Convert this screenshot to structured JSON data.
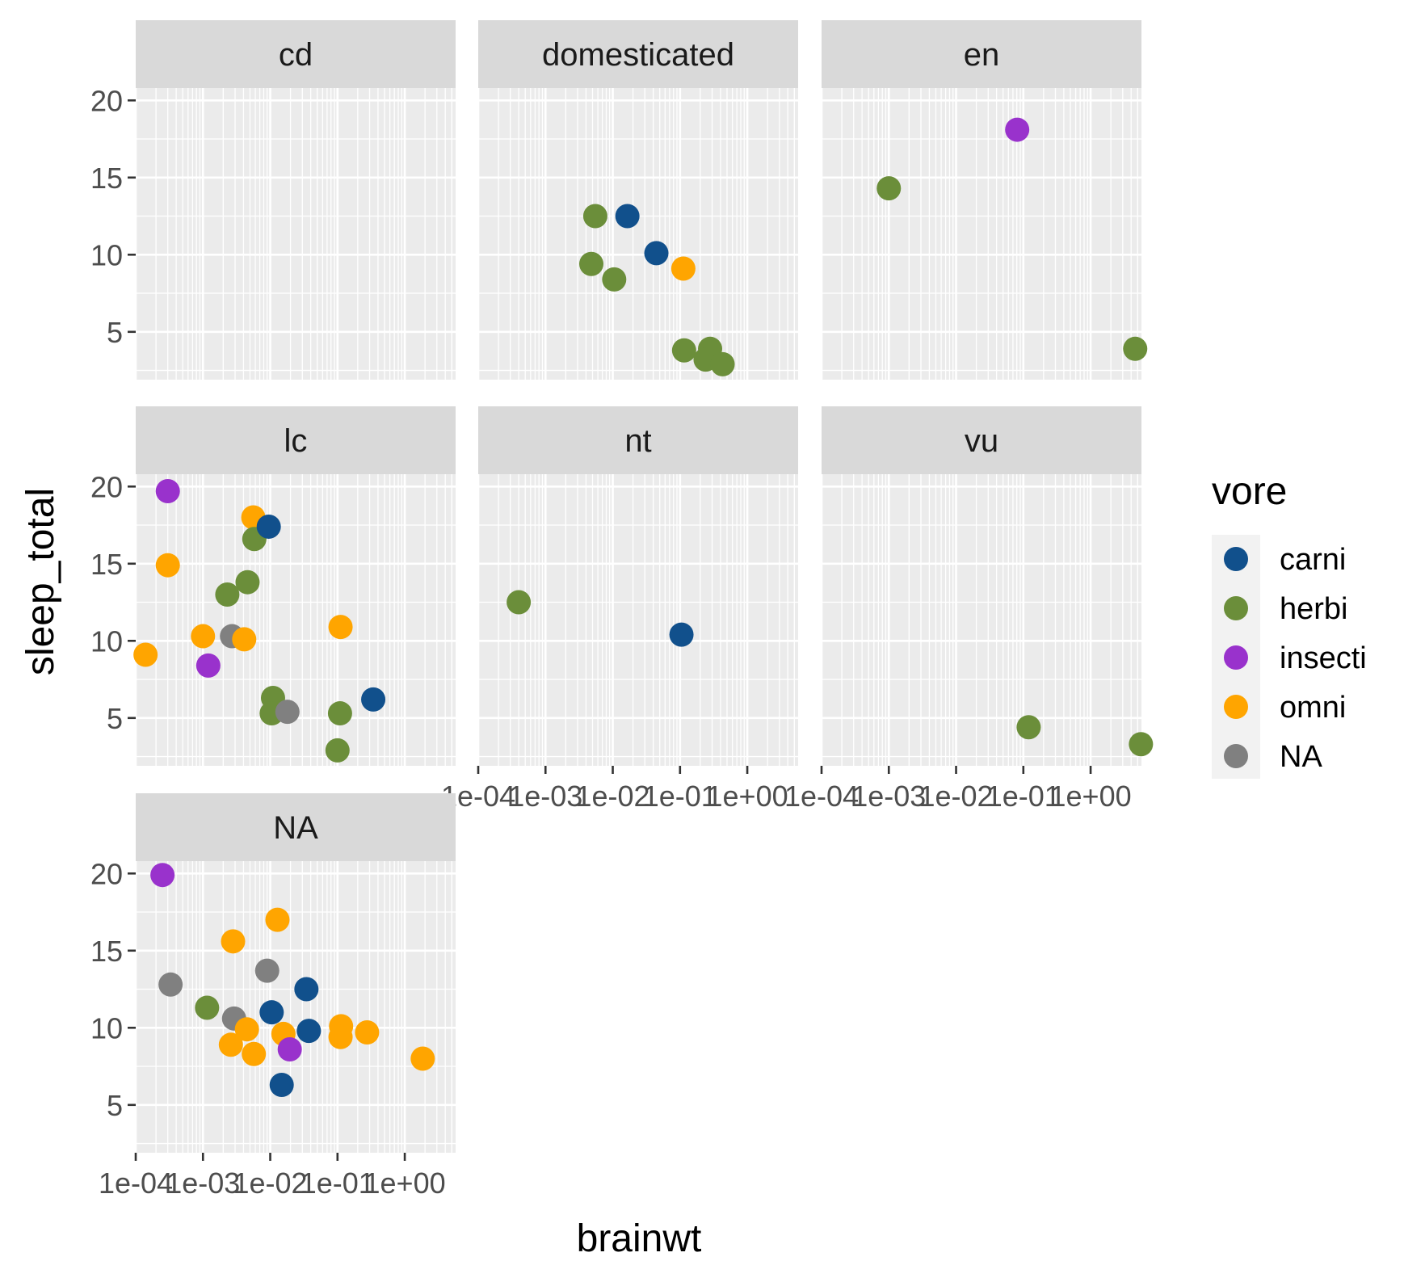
{
  "chart_data": {
    "type": "scatter",
    "title": "",
    "xlabel": "brainwt",
    "ylabel": "sleep_total",
    "x_scale": "log10",
    "xlim": [
      0.0001,
      5.7
    ],
    "ylim": [
      1.9,
      20.8
    ],
    "x_ticks": [
      0.0001,
      0.001,
      0.01,
      0.1,
      1
    ],
    "x_tick_labels": [
      "1e-04",
      "1e-03",
      "1e-02",
      "1e-01",
      "1e+00"
    ],
    "y_ticks": [
      5,
      10,
      15,
      20
    ],
    "y_tick_labels": [
      "5",
      "10",
      "15",
      "20"
    ],
    "grid": true,
    "facet_by": "conservation",
    "legend": {
      "title": "vore",
      "position": "right",
      "entries": [
        {
          "label": "carni",
          "color": "#11508c"
        },
        {
          "label": "herbi",
          "color": "#6b8e3a"
        },
        {
          "label": "insecti",
          "color": "#9932cc"
        },
        {
          "label": "omni",
          "color": "#ffa500"
        },
        {
          "label": "NA",
          "color": "#808080"
        }
      ]
    },
    "facets": [
      {
        "label": "cd",
        "points": []
      },
      {
        "label": "domesticated",
        "points": [
          {
            "x": 0.0055,
            "y": 12.5,
            "vore": "herbi"
          },
          {
            "x": 0.0048,
            "y": 9.4,
            "vore": "herbi"
          },
          {
            "x": 0.0105,
            "y": 8.4,
            "vore": "herbi"
          },
          {
            "x": 0.0165,
            "y": 12.5,
            "vore": "carni"
          },
          {
            "x": 0.0445,
            "y": 10.1,
            "vore": "carni"
          },
          {
            "x": 0.112,
            "y": 9.1,
            "vore": "omni"
          },
          {
            "x": 0.115,
            "y": 3.8,
            "vore": "herbi"
          },
          {
            "x": 0.28,
            "y": 3.9,
            "vore": "herbi"
          },
          {
            "x": 0.24,
            "y": 3.2,
            "vore": "herbi"
          },
          {
            "x": 0.43,
            "y": 2.9,
            "vore": "herbi"
          }
        ]
      },
      {
        "label": "en",
        "points": [
          {
            "x": 0.001,
            "y": 14.3,
            "vore": "herbi"
          },
          {
            "x": 0.081,
            "y": 18.1,
            "vore": "insecti"
          },
          {
            "x": 4.6,
            "y": 3.9,
            "vore": "herbi"
          }
        ]
      },
      {
        "label": "lc",
        "points": [
          {
            "x": 0.0003,
            "y": 19.7,
            "vore": "insecti"
          },
          {
            "x": 0.0003,
            "y": 14.9,
            "vore": "omni"
          },
          {
            "x": 0.00014,
            "y": 9.1,
            "vore": "omni"
          },
          {
            "x": 0.001,
            "y": 10.3,
            "vore": "omni"
          },
          {
            "x": 0.0012,
            "y": 8.4,
            "vore": "insecti"
          },
          {
            "x": 0.0023,
            "y": 13.0,
            "vore": "herbi"
          },
          {
            "x": 0.0027,
            "y": 10.3,
            "vore": "NA"
          },
          {
            "x": 0.0041,
            "y": 10.1,
            "vore": "omni"
          },
          {
            "x": 0.0046,
            "y": 13.8,
            "vore": "herbi"
          },
          {
            "x": 0.0056,
            "y": 18.0,
            "vore": "omni"
          },
          {
            "x": 0.0058,
            "y": 16.6,
            "vore": "herbi"
          },
          {
            "x": 0.0095,
            "y": 17.4,
            "vore": "carni"
          },
          {
            "x": 0.011,
            "y": 6.3,
            "vore": "herbi"
          },
          {
            "x": 0.0105,
            "y": 5.3,
            "vore": "herbi"
          },
          {
            "x": 0.018,
            "y": 5.4,
            "vore": "NA"
          },
          {
            "x": 0.1,
            "y": 2.9,
            "vore": "herbi"
          },
          {
            "x": 0.111,
            "y": 10.9,
            "vore": "omni"
          },
          {
            "x": 0.109,
            "y": 5.3,
            "vore": "herbi"
          },
          {
            "x": 0.34,
            "y": 6.2,
            "vore": "carni"
          }
        ]
      },
      {
        "label": "nt",
        "points": [
          {
            "x": 0.0004,
            "y": 12.5,
            "vore": "herbi"
          },
          {
            "x": 0.105,
            "y": 10.4,
            "vore": "carni"
          }
        ]
      },
      {
        "label": "vu",
        "points": [
          {
            "x": 0.12,
            "y": 4.4,
            "vore": "herbi"
          },
          {
            "x": 5.6,
            "y": 3.3,
            "vore": "herbi"
          }
        ]
      },
      {
        "label": "NA",
        "points": [
          {
            "x": 0.00025,
            "y": 19.9,
            "vore": "insecti"
          },
          {
            "x": 0.00033,
            "y": 12.8,
            "vore": "NA"
          },
          {
            "x": 0.00115,
            "y": 11.3,
            "vore": "herbi"
          },
          {
            "x": 0.0028,
            "y": 15.6,
            "vore": "omni"
          },
          {
            "x": 0.0029,
            "y": 10.6,
            "vore": "NA"
          },
          {
            "x": 0.0026,
            "y": 8.9,
            "vore": "omni"
          },
          {
            "x": 0.0045,
            "y": 9.9,
            "vore": "omni"
          },
          {
            "x": 0.0057,
            "y": 8.3,
            "vore": "omni"
          },
          {
            "x": 0.009,
            "y": 13.7,
            "vore": "NA"
          },
          {
            "x": 0.0105,
            "y": 11.0,
            "vore": "carni"
          },
          {
            "x": 0.0128,
            "y": 17.0,
            "vore": "omni"
          },
          {
            "x": 0.0157,
            "y": 9.6,
            "vore": "omni"
          },
          {
            "x": 0.0148,
            "y": 6.3,
            "vore": "carni"
          },
          {
            "x": 0.0195,
            "y": 8.6,
            "vore": "insecti"
          },
          {
            "x": 0.0345,
            "y": 12.5,
            "vore": "carni"
          },
          {
            "x": 0.0375,
            "y": 9.8,
            "vore": "carni"
          },
          {
            "x": 0.113,
            "y": 10.1,
            "vore": "omni"
          },
          {
            "x": 0.111,
            "y": 9.4,
            "vore": "omni"
          },
          {
            "x": 0.275,
            "y": 9.7,
            "vore": "omni"
          },
          {
            "x": 1.85,
            "y": 8.0,
            "vore": "omni"
          }
        ]
      }
    ]
  }
}
